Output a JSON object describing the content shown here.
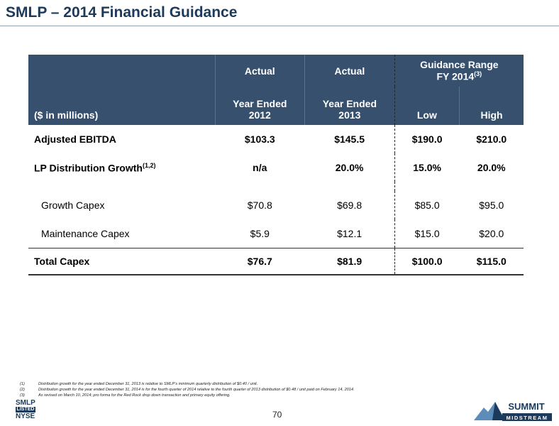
{
  "header": {
    "title": "SMLP – 2014 Financial Guidance"
  },
  "table": {
    "head_top": [
      "Actual",
      "Actual"
    ],
    "guidance": {
      "line1": "Guidance Range",
      "line2": "FY 2014",
      "sup": "(3)"
    },
    "head_bottom": {
      "label": "($ in millions)",
      "columns": [
        [
          "Year Ended",
          "2012"
        ],
        [
          "Year Ended",
          "2013"
        ],
        [
          "Low"
        ],
        [
          "High"
        ]
      ]
    },
    "main_rows": [
      {
        "label": "Adjusted EBITDA",
        "values": [
          "$103.3",
          "$145.5",
          "$190.0",
          "$210.0"
        ]
      },
      {
        "label": "LP Distribution Growth",
        "sup": "(1,2)",
        "values": [
          "n/a",
          "20.0%",
          "15.0%",
          "20.0%"
        ]
      }
    ],
    "capex_rows": [
      {
        "label": "Growth Capex",
        "values": [
          "$70.8",
          "$69.8",
          "$85.0",
          "$95.0"
        ]
      },
      {
        "label": "Maintenance Capex",
        "values": [
          "$5.9",
          "$12.1",
          "$15.0",
          "$20.0"
        ]
      }
    ],
    "total_row": {
      "label": "Total Capex",
      "values": [
        "$76.7",
        "$81.9",
        "$100.0",
        "$115.0"
      ]
    }
  },
  "footnotes": [
    {
      "marker": "(1)",
      "text": "Distribution growth for the year ended December 31, 2013 is relative to SMLP’s minimum quarterly distribution of $0.40 / unit."
    },
    {
      "marker": "(2)",
      "text": "Distribution growth for the year ended December 31, 2014 is for the fourth quarter of 2014 relative to the fourth quarter of 2013 distribution of $0.48 / unit paid on February 14, 2014."
    },
    {
      "marker": "(3)",
      "text": "As revised on March 10, 2014; pro forma for the Red Rock drop down transaction and primary equity offering."
    }
  ],
  "footer": {
    "page": "70",
    "left_logo": [
      "SMLP",
      "LISTED",
      "NYSE"
    ],
    "right_logo": [
      "SUMMIT",
      "MIDSTREAM"
    ]
  }
}
